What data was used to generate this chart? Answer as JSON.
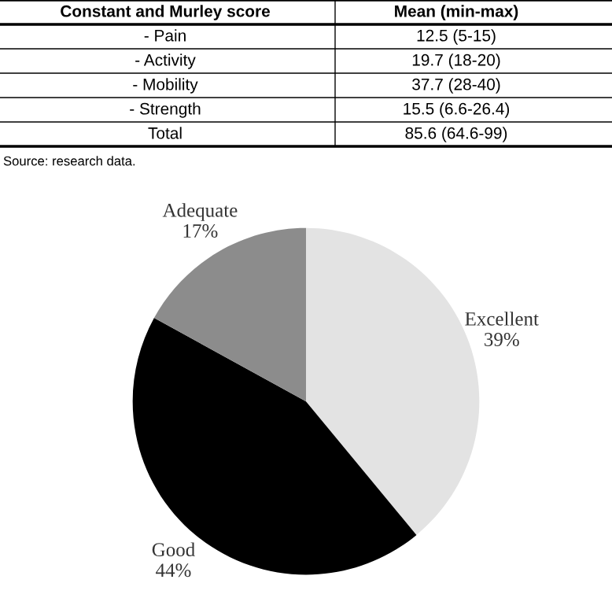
{
  "chart_data": [
    {
      "type": "other",
      "annotations": [
        "Constant and Murley score",
        "Mean (min-max)",
        "- Pain",
        "12.5 (5-15)",
        "- Activity",
        "19.7 (18-20)",
        "- Mobility",
        "37.7 (28-40)",
        "- Strength",
        "15.5 (6.6-26.4)",
        "Total",
        "85.6 (64.6-99)",
        "Source: research data."
      ]
    },
    {
      "type": "pie",
      "categories": [
        "Excellent",
        "Good",
        "Adequate"
      ],
      "values": [
        39,
        44,
        17
      ],
      "colors": [
        "#e3e3e3",
        "#000000",
        "#8c8c8c"
      ],
      "value_labels": [
        "39%",
        "44%",
        "17%"
      ]
    }
  ]
}
